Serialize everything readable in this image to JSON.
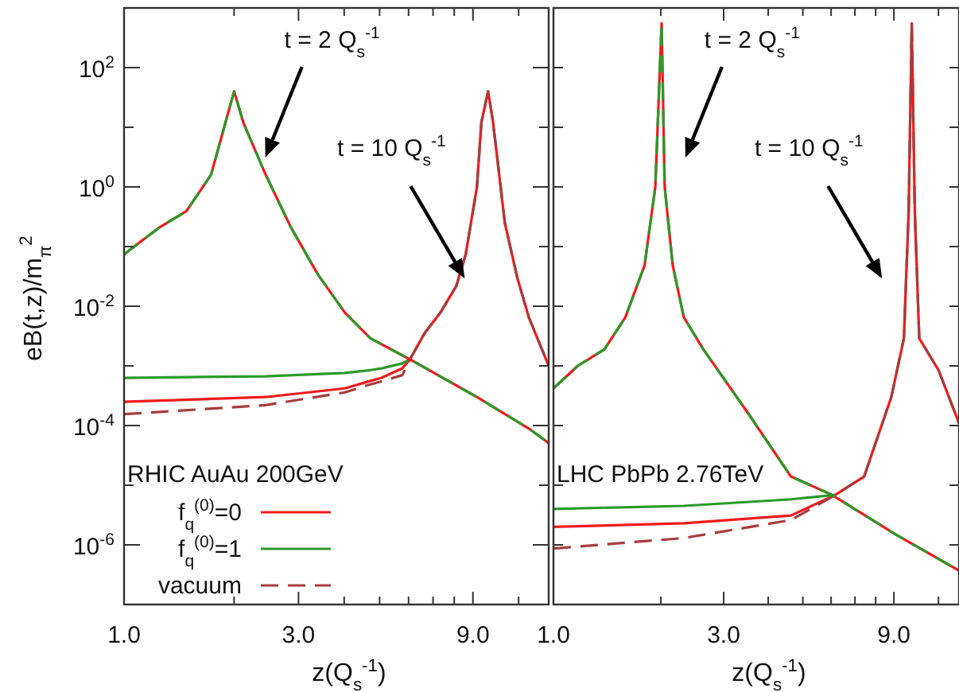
{
  "chart_data": [
    {
      "type": "line",
      "xlabel": "z(Q$_{s}$$^{-1}$)",
      "ylabel": "eB(t,z)/m$_{π}$$^{2}$",
      "log": "xy",
      "xlim": [
        1,
        14.5
      ],
      "ylim": [
        1e-07,
        1000
      ],
      "xticks": [
        {
          "value": 1,
          "label": "1.0"
        },
        {
          "value": 2,
          "label": null
        },
        {
          "value": 3,
          "label": "3.0"
        },
        {
          "value": 4,
          "label": null
        },
        {
          "value": 5,
          "label": null
        },
        {
          "value": 6,
          "label": null
        },
        {
          "value": 7,
          "label": null
        },
        {
          "value": 8,
          "label": null
        },
        {
          "value": 9,
          "label": "9.0"
        },
        {
          "value": 12,
          "label": null
        }
      ],
      "yticks": [
        {
          "value": 100,
          "label": "10$^{2}$"
        },
        {
          "value": 10,
          "label": null
        },
        {
          "value": 1,
          "label": "10$^{0}$"
        },
        {
          "value": 0.1,
          "label": null
        },
        {
          "value": 0.01,
          "label": "10$^{-2}$"
        },
        {
          "value": 0.001,
          "label": null
        },
        {
          "value": 0.0001,
          "label": "10$^{-4}$"
        },
        {
          "value": 1e-05,
          "label": null
        },
        {
          "value": 1e-06,
          "label": "10$^{-6}$"
        }
      ],
      "legend": "bottom left",
      "annotations": [
        "RHIC AuAu 200GeV",
        "t = 2 Q$_{s}$$^{-1}$",
        "t = 10 Q$_{s}$$^{-1}$"
      ],
      "series": [
        {
          "name": "f$_{q}$$^{(0)}$=0",
          "color": "#f01a1a",
          "line_style": "solid",
          "x": [
            1,
            2.44,
            4.02,
            4.72,
            5.06,
            5.77,
            6.06,
            6.63,
            7.33,
            8.11,
            8.6,
            9.23,
            9.49,
            9.9,
            10.2,
            10.5,
            11.0,
            11.9,
            12.8,
            14.5
          ],
          "values": [
            0.00025,
            0.0003,
            0.00042,
            0.00056,
            0.00063,
            0.00091,
            0.0013,
            0.0035,
            0.0078,
            0.022,
            0.074,
            1.0,
            12,
            40,
            13,
            2.9,
            0.25,
            0.03,
            0.0065,
            0.001
          ]
        },
        {
          "name": "f$_{q}$$^{(0)}$=1",
          "color": "#2a9a2a",
          "line_style": "solid",
          "x": [
            1,
            2.44,
            4.02,
            4.72,
            5.06,
            5.77,
            6.06
          ],
          "values": [
            0.00063,
            0.00067,
            0.00076,
            0.00085,
            0.00091,
            0.0011,
            0.0013
          ]
        },
        {
          "name": "vacuum",
          "color": "#a83c3c",
          "line_style": "dashed",
          "x": [
            1,
            2.44,
            4.02,
            4.72,
            5.06,
            5.77,
            6.06,
            6.63,
            7.33,
            8.11,
            8.6,
            9.23,
            9.49,
            9.9,
            10.2,
            10.5,
            11.0,
            11.9,
            12.8,
            14.5
          ],
          "values": [
            0.000155,
            0.00022,
            0.00036,
            0.00049,
            0.00055,
            0.0007,
            0.0013,
            0.0035,
            0.0078,
            0.022,
            0.074,
            1.0,
            12,
            40,
            13,
            2.9,
            0.25,
            0.03,
            0.0065,
            0.001
          ]
        },
        {
          "color": "#f01a1a",
          "line_style": "solid",
          "x": [
            1,
            1.25,
            1.48,
            1.73,
            1.86,
            2.0,
            2.12,
            2.27,
            2.44,
            2.86,
            3.39,
            4.02,
            4.72,
            6.18,
            9.23,
            12.8,
            14.5
          ],
          "values": [
            0.074,
            0.21,
            0.39,
            1.6,
            8,
            40,
            12,
            4.5,
            1.6,
            0.21,
            0.034,
            0.0078,
            0.0029,
            0.0012,
            0.0003,
            8.9e-05,
            5.1e-05
          ]
        },
        {
          "color": "#2a9a2a",
          "line_style": "dashed",
          "x": [
            1,
            1.25,
            1.48,
            1.73,
            1.86,
            2.0,
            2.12,
            2.27,
            2.44,
            2.86,
            3.39,
            4.02,
            4.72,
            6.18,
            9.23,
            12.8,
            14.5
          ],
          "values": [
            0.074,
            0.21,
            0.39,
            1.6,
            8,
            40,
            12,
            4.5,
            1.6,
            0.21,
            0.034,
            0.0078,
            0.0029,
            0.0012,
            0.0003,
            8.9e-05,
            5.1e-05
          ]
        }
      ]
    },
    {
      "type": "line",
      "xlabel": "z(Q$_{s}$$^{-1}$)",
      "log": "xy",
      "xlim": [
        1,
        13.7
      ],
      "ylim": [
        1e-07,
        1000
      ],
      "tick_labels": "x",
      "xticks": [
        {
          "value": 1,
          "label": "1.0"
        },
        {
          "value": 2,
          "label": null
        },
        {
          "value": 3,
          "label": "3.0"
        },
        {
          "value": 4,
          "label": null
        },
        {
          "value": 5,
          "label": null
        },
        {
          "value": 6,
          "label": null
        },
        {
          "value": 7,
          "label": null
        },
        {
          "value": 8,
          "label": null
        },
        {
          "value": 9,
          "label": "9.0"
        },
        {
          "value": 12,
          "label": null
        }
      ],
      "yticks": [
        {
          "value": 100,
          "label": null
        },
        {
          "value": 10,
          "label": null
        },
        {
          "value": 1,
          "label": null
        },
        {
          "value": 0.1,
          "label": null
        },
        {
          "value": 0.01,
          "label": null
        },
        {
          "value": 0.001,
          "label": null
        },
        {
          "value": 0.0001,
          "label": null
        },
        {
          "value": 1e-05,
          "label": null
        },
        {
          "value": 1e-06,
          "label": null
        }
      ],
      "annotations": [
        "LHC PbPb 2.76TeV",
        "t = 2 Q$_{s}$$^{-1}$",
        "t = 10 Q$_{s}$$^{-1}$"
      ],
      "series": [
        {
          "color": "#f01a1a",
          "line_style": "solid",
          "x": [
            1,
            2.32,
            4.63,
            6.17,
            7.43,
            8.85,
            9.6,
            9.9,
            10.1,
            10.3,
            10.6,
            12.0,
            13.7
          ],
          "values": [
            2e-06,
            2.3e-06,
            3.1e-06,
            6.9e-06,
            1.4e-05,
            0.0003,
            0.0029,
            0.39,
            550,
            0.39,
            0.0029,
            0.00085,
            0.00011
          ]
        },
        {
          "color": "#2a9a2a",
          "line_style": "solid",
          "x": [
            1,
            2.32,
            4.63,
            6.17
          ],
          "values": [
            4e-06,
            4.5e-06,
            5.8e-06,
            6.9e-06
          ]
        },
        {
          "color": "#a83c3c",
          "line_style": "dashed",
          "x": [
            1,
            2.32,
            4.63,
            6.17,
            7.43,
            8.85,
            9.6,
            9.9,
            10.1,
            10.3,
            10.6,
            12.0,
            13.7
          ],
          "values": [
            8.7e-07,
            1.3e-06,
            2.6e-06,
            6.9e-06,
            1.4e-05,
            0.0003,
            0.0029,
            0.39,
            550,
            0.39,
            0.0029,
            0.00085,
            0.00011
          ]
        },
        {
          "color": "#f01a1a",
          "line_style": "solid",
          "x": [
            1,
            1.17,
            1.39,
            1.59,
            1.8,
            1.93,
            2.01,
            2.05,
            2.16,
            2.32,
            2.63,
            3.5,
            4.63,
            6.03,
            9.1,
            13.7
          ],
          "values": [
            0.00042,
            0.001,
            0.0019,
            0.0065,
            0.048,
            1.0,
            550,
            1.0,
            0.048,
            0.0065,
            0.0019,
            0.000166,
            1.4e-05,
            6.9e-06,
            1.5e-06,
            3.7e-07
          ]
        },
        {
          "color": "#2a9a2a",
          "line_style": "dashed",
          "x": [
            1,
            1.17,
            1.39,
            1.59,
            1.8,
            1.93,
            2.01,
            2.05,
            2.16,
            2.32,
            2.63,
            3.5,
            4.63,
            6.03,
            9.1,
            13.7
          ],
          "values": [
            0.00042,
            0.001,
            0.0019,
            0.0065,
            0.048,
            1.0,
            550,
            1.0,
            0.048,
            0.0065,
            0.0019,
            0.000166,
            1.4e-05,
            6.9e-06,
            1.5e-06,
            3.7e-07
          ]
        }
      ]
    }
  ]
}
